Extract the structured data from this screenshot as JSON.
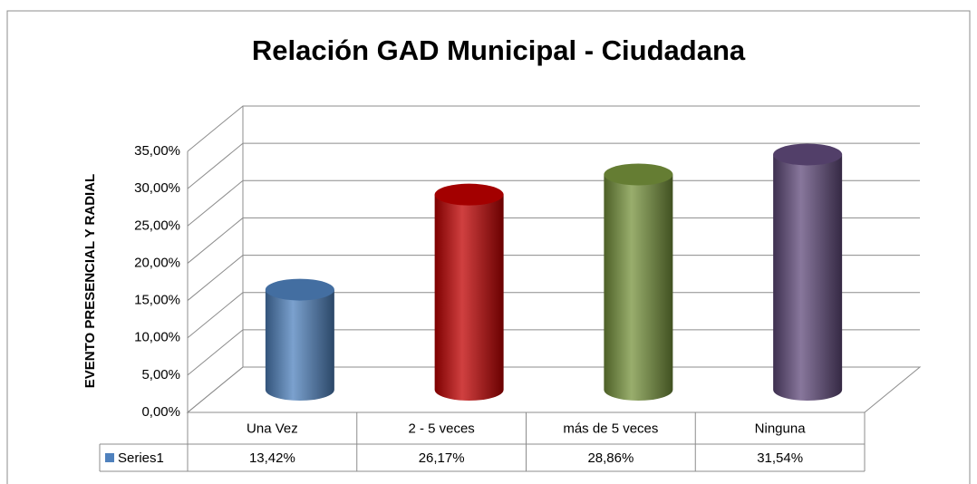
{
  "chart_data": {
    "type": "cylinder3d",
    "title": "Relación GAD Municipal - Ciudadana",
    "y_axis_label": "EVENTO PRESENCIAL Y RADIAL",
    "categories": [
      "Una Vez",
      "2 - 5 veces",
      "más de 5 veces",
      "Ninguna"
    ],
    "series": [
      {
        "name": "Series1",
        "color": "#4f81bd",
        "point_colors": [
          "#4f81bd",
          "#c00000",
          "#77933c",
          "#604a7b"
        ],
        "values": [
          13.42,
          26.17,
          28.86,
          31.54
        ],
        "value_labels": [
          "13,42%",
          "26,17%",
          "28,86%",
          "31,54%"
        ]
      }
    ],
    "ylim": [
      0,
      35
    ],
    "yticks": [
      {
        "value": 0,
        "label": "0,00%"
      },
      {
        "value": 5,
        "label": "5,00%"
      },
      {
        "value": 10,
        "label": "10,00%"
      },
      {
        "value": 15,
        "label": "15,00%"
      },
      {
        "value": 20,
        "label": "20,00%"
      },
      {
        "value": 25,
        "label": "25,00%"
      },
      {
        "value": 30,
        "label": "30,00%"
      },
      {
        "value": 35,
        "label": "35,00%"
      }
    ],
    "grid": true,
    "data_table": true
  }
}
